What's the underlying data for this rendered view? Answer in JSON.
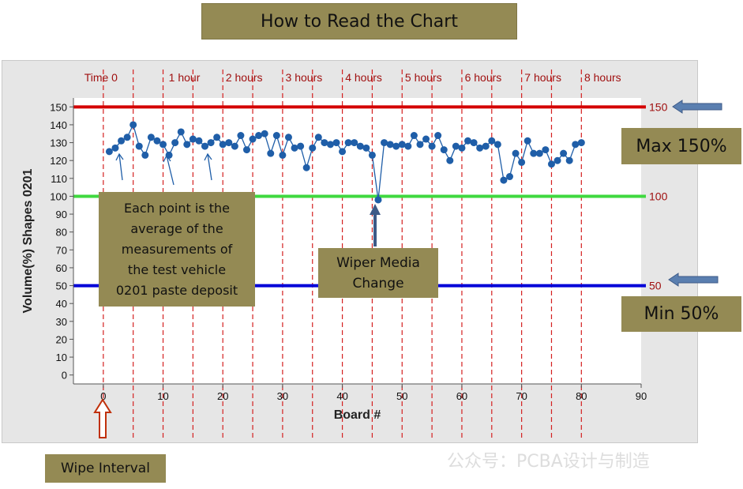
{
  "title": "How to Read the Chart",
  "callouts": {
    "point_text": "Each point is the average of the measurements of the test vehicle 0201 paste deposit",
    "point_lines": [
      "Each point is the",
      "average of the",
      "measurements  of",
      "the test vehicle",
      "0201 paste deposit"
    ],
    "wiper_lines": [
      "Wiper Media",
      "Change"
    ],
    "max": "Max 150%",
    "min": "Min 50%",
    "wipe_interval": "Wipe Interval"
  },
  "watermark": "公众号：PCBA设计与制造",
  "colors": {
    "title_box": "#948a54",
    "max_line": "#d40000",
    "target_line": "#3fd83f",
    "min_line": "#0000d8",
    "points": "#1f5ea8",
    "time_markers": "#d42020",
    "time_label": "#a01010",
    "frame": "#e6e6e6"
  },
  "chart_data": {
    "type": "line",
    "xlabel": "Board #",
    "ylabel": "Volume(%) Shapes 0201",
    "xlim": [
      -5,
      90
    ],
    "ylim": [
      -5,
      155
    ],
    "x_ticks": [
      0,
      10,
      20,
      30,
      40,
      50,
      60,
      70,
      80,
      90
    ],
    "y_ticks": [
      0,
      10,
      20,
      30,
      40,
      50,
      60,
      70,
      80,
      90,
      100,
      110,
      120,
      130,
      140,
      150
    ],
    "grid": false,
    "reference_lines": [
      {
        "y": 150,
        "label": "150",
        "color": "#d40000"
      },
      {
        "y": 100,
        "label": "100",
        "color": "#3fd83f"
      },
      {
        "y": 50,
        "label": "50",
        "color": "#0000d8"
      }
    ],
    "time_markers": [
      {
        "x": 0,
        "label": "Time 0"
      },
      {
        "x": 5,
        "label": ""
      },
      {
        "x": 10,
        "label": "1 hour"
      },
      {
        "x": 15,
        "label": ""
      },
      {
        "x": 20,
        "label": "2 hours"
      },
      {
        "x": 25,
        "label": ""
      },
      {
        "x": 30,
        "label": "3 hours"
      },
      {
        "x": 35,
        "label": ""
      },
      {
        "x": 40,
        "label": "4 hours"
      },
      {
        "x": 45,
        "label": ""
      },
      {
        "x": 50,
        "label": "5 hours"
      },
      {
        "x": 55,
        "label": ""
      },
      {
        "x": 60,
        "label": "6 hours"
      },
      {
        "x": 65,
        "label": ""
      },
      {
        "x": 70,
        "label": "7 hours"
      },
      {
        "x": 75,
        "label": ""
      },
      {
        "x": 80,
        "label": "8 hours"
      }
    ],
    "series": [
      {
        "x": [
          1,
          2,
          3,
          4,
          5,
          6,
          7,
          8,
          9,
          10,
          11,
          12,
          13,
          14,
          15,
          16,
          17,
          18,
          19,
          20,
          21,
          22,
          23,
          24,
          25,
          26,
          27,
          28,
          29,
          30,
          31,
          32,
          33,
          34,
          35,
          36,
          37,
          38,
          39,
          40,
          41,
          42,
          43,
          44,
          45,
          46,
          47,
          48,
          49,
          50,
          51,
          52,
          53,
          54,
          55,
          56,
          57,
          58,
          59,
          60,
          61,
          62,
          63,
          64,
          65,
          66,
          67,
          68,
          69,
          70,
          71,
          72,
          73,
          74,
          75,
          76,
          77,
          78,
          79,
          80
        ],
        "values": [
          125,
          127,
          131,
          133,
          140,
          128,
          123,
          133,
          131,
          129,
          123,
          130,
          136,
          129,
          132,
          131,
          128,
          130,
          133,
          129,
          130,
          128,
          134,
          126,
          132,
          134,
          135,
          124,
          134,
          123,
          133,
          127,
          128,
          116,
          127,
          133,
          130,
          129,
          130,
          125,
          130,
          130,
          128,
          127,
          123,
          98,
          130,
          129,
          128,
          129,
          128,
          134,
          129,
          132,
          128,
          134,
          126,
          120,
          128,
          127,
          131,
          130,
          127,
          128,
          131,
          129,
          109,
          111,
          124,
          119,
          131,
          124,
          124,
          126,
          118,
          120,
          124,
          120,
          129,
          130
        ]
      }
    ],
    "annotations": [
      "Each point is the average of the measurements of the test vehicle 0201 paste deposit",
      "Wiper Media Change",
      "Max 150%",
      "Min 50%",
      "Wipe Interval"
    ]
  }
}
